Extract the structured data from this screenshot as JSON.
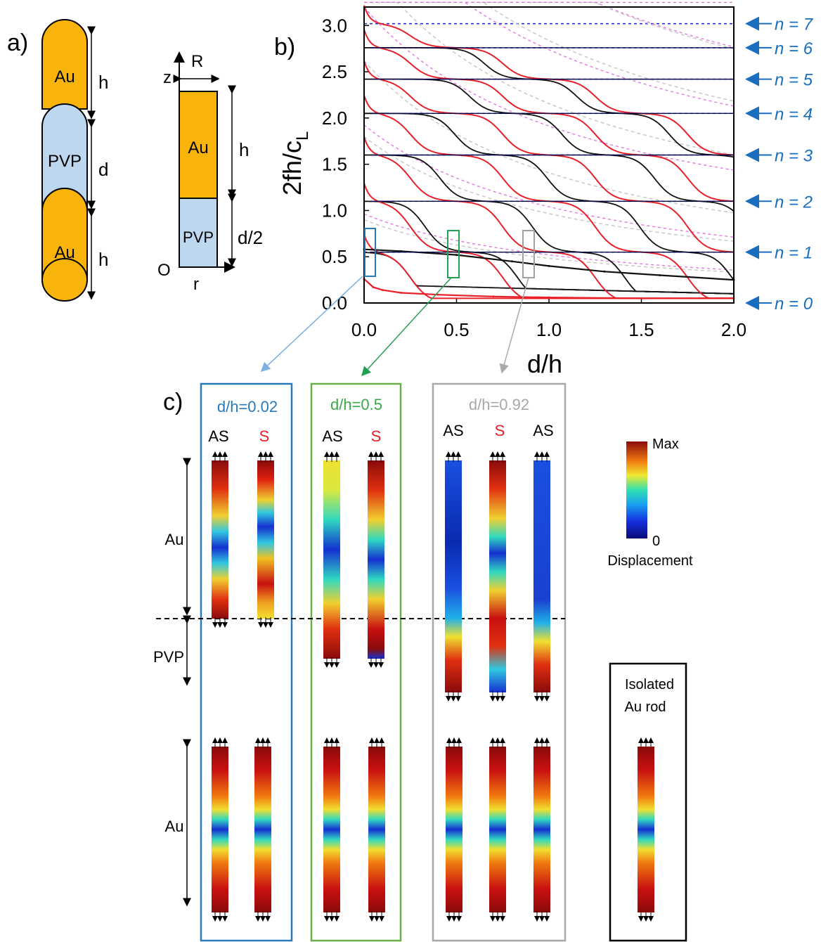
{
  "panel_a": {
    "label": "a)",
    "au_top": "Au",
    "pvp": "PVP",
    "au_bottom": "Au",
    "h_top": "h",
    "d": "d",
    "h_bottom": "h",
    "half_R": "R",
    "half_z": "z",
    "half_au": "Au",
    "half_h": "h",
    "half_pvp": "PVP",
    "half_d2": "d/2",
    "half_O": "O",
    "half_r": "r"
  },
  "panel_b": {
    "label": "b)",
    "ylabel_main": "2fh/c",
    "ylabel_sub": "L",
    "xlabel": "d/h",
    "xticks": [
      "0.0",
      "0.5",
      "1.0",
      "1.5",
      "2.0"
    ],
    "yticks": [
      "0.0",
      "0.5",
      "1.0",
      "1.5",
      "2.0",
      "2.5",
      "3.0"
    ],
    "mode_labels": [
      "n = 7",
      "n = 6",
      "n = 5",
      "n = 4",
      "n = 3",
      "n = 2",
      "n = 1",
      "n = 0"
    ]
  },
  "chart_data": {
    "type": "line",
    "xlabel": "d/h",
    "ylabel": "2fh/c_L",
    "xlim": [
      0,
      2
    ],
    "ylim": [
      0,
      3.2
    ],
    "reference_levels": [
      0,
      0.55,
      1.1,
      1.6,
      2.05,
      2.42,
      2.76,
      3.02
    ],
    "highlighted_d_over_h": [
      0.02,
      0.5,
      0.92
    ],
    "series": [
      {
        "name": "",
        "color": "#e8202a",
        "x": [
          0,
          0.05,
          0.1,
          0.2,
          0.4,
          0.7,
          1.0,
          1.5,
          2.0
        ],
        "y": [
          0.26,
          0.17,
          0.14,
          0.11,
          0.09,
          0.07,
          0.06,
          0.05,
          0.05
        ]
      },
      {
        "name": "",
        "color": "#111111",
        "x": [
          0,
          0.2,
          0.5,
          0.8,
          1.0,
          1.3,
          1.6,
          2.0
        ],
        "y": [
          0.58,
          0.56,
          0.52,
          0.45,
          0.4,
          0.34,
          0.3,
          0.25
        ]
      }
    ]
  },
  "panel_c": {
    "label": "c)",
    "groups": [
      {
        "title": "d/h=0.02",
        "color": "#2a7ab8",
        "modes": [
          "AS",
          "S"
        ]
      },
      {
        "title": "d/h=0.5",
        "color": "#3aa84a",
        "modes": [
          "AS",
          "S"
        ]
      },
      {
        "title": "d/h=0.92",
        "color": "#a8a8a8",
        "modes": [
          "AS",
          "S",
          "AS"
        ]
      }
    ],
    "au_upper": "Au",
    "pvp": "PVP",
    "au_lower": "Au",
    "legend_max": "Max",
    "legend_min": "0",
    "legend_title": "Displacement",
    "isolated_line1": "Isolated",
    "isolated_line2": "Au rod"
  },
  "colors": {
    "gold": "#f9b40c",
    "pvp": "#bdd7ee",
    "blue_text": "#2a7ab8",
    "red_curve": "#e8202a",
    "magenta_dash": "#e070e0"
  }
}
